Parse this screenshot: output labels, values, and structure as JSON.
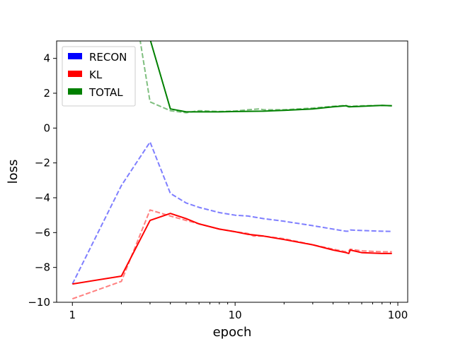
{
  "chart_data": {
    "type": "line",
    "title": "",
    "xlabel": "epoch",
    "ylabel": "loss",
    "xscale": "log",
    "xlim": [
      0.8,
      115
    ],
    "ylim": [
      -10,
      5
    ],
    "x_ticks": [
      1,
      10,
      100
    ],
    "x_tick_labels": [
      "1",
      "10",
      "100"
    ],
    "y_ticks": [
      -10,
      -8,
      -6,
      -4,
      -2,
      0,
      2,
      4
    ],
    "y_tick_labels": [
      "−10",
      "−8",
      "−6",
      "−4",
      "−2",
      "0",
      "2",
      "4"
    ],
    "grid": false,
    "legend_position": "top-left",
    "legend": [
      {
        "name": "RECON",
        "color": "#0000ff"
      },
      {
        "name": "KL",
        "color": "#ff0000"
      },
      {
        "name": "TOTAL",
        "color": "#008000"
      }
    ],
    "series": [
      {
        "color": "#0000ff",
        "style": "dashed",
        "opacity": 0.5,
        "points": [
          [
            1,
            -8.95
          ],
          [
            2,
            -3.3
          ],
          [
            3,
            -0.8
          ],
          [
            4,
            -3.75
          ],
          [
            5,
            -4.3
          ],
          [
            6,
            -4.55
          ],
          [
            8,
            -4.85
          ],
          [
            10,
            -5.0
          ],
          [
            12,
            -5.05
          ],
          [
            15,
            -5.2
          ],
          [
            20,
            -5.35
          ],
          [
            30,
            -5.6
          ],
          [
            40,
            -5.8
          ],
          [
            48,
            -5.92
          ],
          [
            50,
            -5.92
          ],
          [
            51,
            -5.85
          ],
          [
            60,
            -5.88
          ],
          [
            80,
            -5.92
          ],
          [
            92,
            -5.93
          ]
        ]
      },
      {
        "color": "#ff0000",
        "style": "dashed",
        "opacity": 0.5,
        "points": [
          [
            1,
            -9.8
          ],
          [
            2,
            -8.8
          ],
          [
            3,
            -4.7
          ],
          [
            4,
            -5.05
          ],
          [
            5,
            -5.3
          ],
          [
            6,
            -5.5
          ],
          [
            8,
            -5.8
          ],
          [
            10,
            -5.95
          ],
          [
            12,
            -6.05
          ],
          [
            13,
            -6.2
          ],
          [
            15,
            -6.2
          ],
          [
            20,
            -6.35
          ],
          [
            30,
            -6.7
          ],
          [
            40,
            -6.95
          ],
          [
            48,
            -7.1
          ],
          [
            50,
            -7.05
          ],
          [
            51,
            -6.95
          ],
          [
            60,
            -7.05
          ],
          [
            80,
            -7.1
          ],
          [
            92,
            -7.1
          ]
        ]
      },
      {
        "color": "#008000",
        "style": "dashed",
        "opacity": 0.5,
        "points": [
          [
            2.6,
            5.1
          ],
          [
            3,
            1.5
          ],
          [
            4,
            1.0
          ],
          [
            5,
            0.88
          ],
          [
            6,
            1.0
          ],
          [
            8,
            0.95
          ],
          [
            10,
            0.98
          ],
          [
            12,
            1.05
          ],
          [
            14,
            1.1
          ],
          [
            15,
            1.05
          ],
          [
            20,
            1.05
          ],
          [
            30,
            1.15
          ],
          [
            40,
            1.25
          ],
          [
            48,
            1.3
          ],
          [
            50,
            1.25
          ],
          [
            60,
            1.28
          ],
          [
            80,
            1.3
          ],
          [
            92,
            1.28
          ]
        ]
      },
      {
        "color": "#ff0000",
        "style": "solid",
        "opacity": 1,
        "points": [
          [
            1,
            -8.95
          ],
          [
            2,
            -8.5
          ],
          [
            3,
            -5.3
          ],
          [
            4,
            -4.9
          ],
          [
            5,
            -5.2
          ],
          [
            6,
            -5.5
          ],
          [
            8,
            -5.8
          ],
          [
            10,
            -5.95
          ],
          [
            12,
            -6.1
          ],
          [
            15,
            -6.2
          ],
          [
            20,
            -6.4
          ],
          [
            30,
            -6.7
          ],
          [
            40,
            -7.0
          ],
          [
            48,
            -7.15
          ],
          [
            50,
            -7.2
          ],
          [
            51,
            -7.0
          ],
          [
            60,
            -7.15
          ],
          [
            80,
            -7.2
          ],
          [
            92,
            -7.2
          ]
        ]
      },
      {
        "color": "#008000",
        "style": "solid",
        "opacity": 1,
        "points": [
          [
            3,
            5.1
          ],
          [
            4,
            1.1
          ],
          [
            5,
            0.93
          ],
          [
            6,
            0.93
          ],
          [
            8,
            0.93
          ],
          [
            10,
            0.95
          ],
          [
            15,
            0.97
          ],
          [
            20,
            1.02
          ],
          [
            30,
            1.1
          ],
          [
            40,
            1.22
          ],
          [
            48,
            1.28
          ],
          [
            50,
            1.22
          ],
          [
            60,
            1.25
          ],
          [
            80,
            1.3
          ],
          [
            92,
            1.28
          ]
        ]
      }
    ]
  }
}
